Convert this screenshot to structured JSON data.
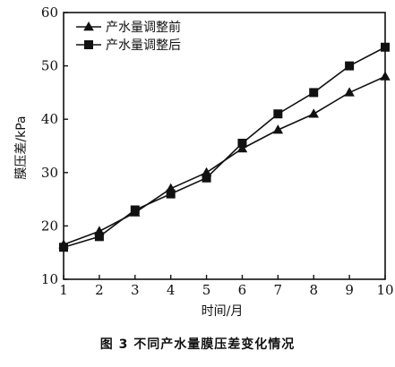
{
  "caption": "图 3    不同产水量膜压差变化情况",
  "chart_data": {
    "type": "line",
    "title": "",
    "xlabel": "时间/月",
    "ylabel": "膜压差/kPa",
    "x": [
      1,
      2,
      3,
      4,
      5,
      6,
      7,
      8,
      9,
      10
    ],
    "xlim": [
      1,
      10
    ],
    "ylim": [
      10,
      60
    ],
    "yticks": [
      10,
      20,
      30,
      40,
      50,
      60
    ],
    "xticks": [
      1,
      2,
      3,
      4,
      5,
      6,
      7,
      8,
      9,
      10
    ],
    "grid": false,
    "legend_position": "top-left",
    "series": [
      {
        "name": "产水量调整前",
        "marker": "triangle",
        "values": [
          16.5,
          19,
          22.5,
          27,
          30,
          34.5,
          38,
          41,
          45,
          48
        ]
      },
      {
        "name": "产水量调整后",
        "marker": "square",
        "values": [
          16,
          18,
          23,
          26,
          29,
          35.5,
          41,
          45,
          50,
          53.5
        ]
      }
    ]
  }
}
